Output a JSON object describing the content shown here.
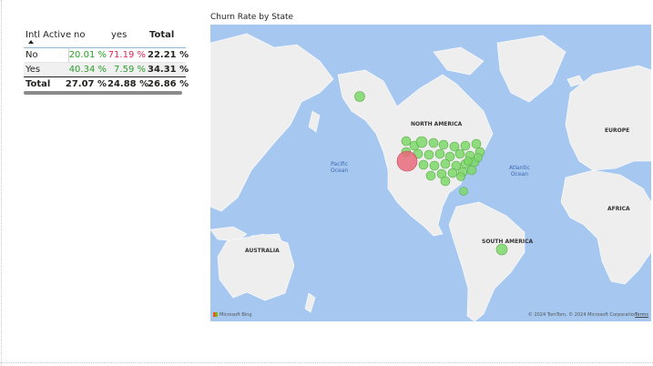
{
  "top_glyph": "ʼ",
  "matrix": {
    "header": {
      "row_label": "Intl Active",
      "col_no": "no",
      "col_yes": "yes",
      "col_total": "Total"
    },
    "rows": [
      {
        "label": "No",
        "no": "20.01 %",
        "yes": "71.19 %",
        "total": "22.21 %"
      },
      {
        "label": "Yes",
        "no": "40.34 %",
        "yes": "7.59 %",
        "total": "34.31 %"
      }
    ],
    "total_row": {
      "label": "Total",
      "no": "27.07 %",
      "yes": "24.88 %",
      "total": "26.86 %"
    },
    "colors": {
      "good": "#2aa02a",
      "bad": "#e0245e"
    }
  },
  "map": {
    "title": "Churn Rate by State",
    "labels": {
      "north_america": "NORTH AMERICA",
      "south_america": "SOUTH AMERICA",
      "europe": "EUROPE",
      "africa": "AFRICA",
      "australia": "AUSTRALIA",
      "pacific": "Pacific",
      "pacific2": "Ocean",
      "atlantic": "Atlantic",
      "atlantic2": "Ocean"
    },
    "bing": "Microsoft Bing",
    "copyright": "© 2024 TomTom, © 2024 Microsoft Corporation",
    "terms": "Terms",
    "colors": {
      "ocean": "#a6c8f0",
      "land": "#eeeeee",
      "bubble_low": "#7ed86a",
      "bubble_high": "#e86a7a"
    }
  }
}
